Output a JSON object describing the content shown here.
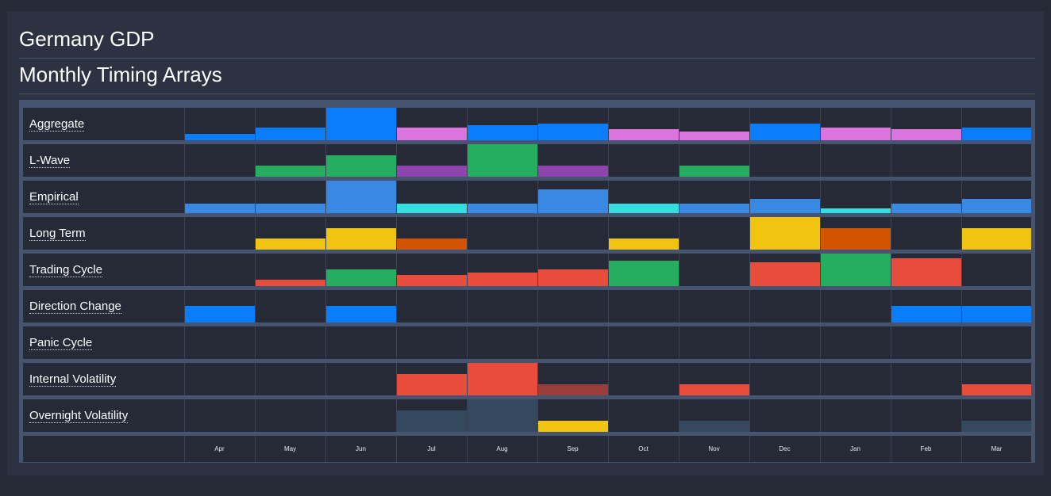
{
  "header": {
    "title": "Germany GDP",
    "subtitle": "Monthly Timing Arrays"
  },
  "months": [
    "Apr",
    "May",
    "Jun",
    "Jul",
    "Aug",
    "Sep",
    "Oct",
    "Nov",
    "Dec",
    "Jan",
    "Feb",
    "Mar"
  ],
  "colors": {
    "blue": "#0a7dfd",
    "pink": "#dc74e0",
    "green": "#26ad60",
    "purple": "#8e44ad",
    "lightblue": "#3989e3",
    "cyan": "#33dde0",
    "yellow": "#f1c40f",
    "orange": "#d35400",
    "red": "#e74c3c",
    "darkred": "#993d3d",
    "slate": "#34495e"
  },
  "rows": [
    {
      "label": "Aggregate",
      "cells": [
        {
          "level": 0.2,
          "color": "blue"
        },
        {
          "level": 0.4,
          "color": "blue"
        },
        {
          "level": 1.0,
          "color": "blue"
        },
        {
          "level": 0.4,
          "color": "pink"
        },
        {
          "level": 0.47,
          "color": "blue"
        },
        {
          "level": 0.5,
          "color": "blue"
        },
        {
          "level": 0.33,
          "color": "pink"
        },
        {
          "level": 0.27,
          "color": "pink"
        },
        {
          "level": 0.5,
          "color": "blue"
        },
        {
          "level": 0.4,
          "color": "pink"
        },
        {
          "level": 0.33,
          "color": "pink"
        },
        {
          "level": 0.4,
          "color": "blue"
        }
      ]
    },
    {
      "label": "L-Wave",
      "cells": [
        {
          "level": 0,
          "color": ""
        },
        {
          "level": 0.33,
          "color": "green"
        },
        {
          "level": 0.67,
          "color": "green"
        },
        {
          "level": 0.33,
          "color": "purple"
        },
        {
          "level": 1.0,
          "color": "green"
        },
        {
          "level": 0.33,
          "color": "purple"
        },
        {
          "level": 0,
          "color": ""
        },
        {
          "level": 0.33,
          "color": "green"
        },
        {
          "level": 0,
          "color": ""
        },
        {
          "level": 0,
          "color": ""
        },
        {
          "level": 0,
          "color": ""
        },
        {
          "level": 0,
          "color": ""
        }
      ]
    },
    {
      "label": "Empirical",
      "cells": [
        {
          "level": 0.3,
          "color": "lightblue"
        },
        {
          "level": 0.3,
          "color": "lightblue"
        },
        {
          "level": 1.0,
          "color": "lightblue"
        },
        {
          "level": 0.3,
          "color": "cyan"
        },
        {
          "level": 0.3,
          "color": "lightblue"
        },
        {
          "level": 0.72,
          "color": "lightblue"
        },
        {
          "level": 0.3,
          "color": "cyan"
        },
        {
          "level": 0.3,
          "color": "lightblue"
        },
        {
          "level": 0.45,
          "color": "lightblue"
        },
        {
          "level": 0.15,
          "color": "cyan"
        },
        {
          "level": 0.3,
          "color": "lightblue"
        },
        {
          "level": 0.45,
          "color": "lightblue"
        }
      ]
    },
    {
      "label": "Long Term",
      "cells": [
        {
          "level": 0,
          "color": ""
        },
        {
          "level": 0.35,
          "color": "yellow"
        },
        {
          "level": 0.65,
          "color": "yellow"
        },
        {
          "level": 0.35,
          "color": "orange"
        },
        {
          "level": 0,
          "color": ""
        },
        {
          "level": 0,
          "color": ""
        },
        {
          "level": 0.35,
          "color": "yellow"
        },
        {
          "level": 0,
          "color": ""
        },
        {
          "level": 1.0,
          "color": "yellow"
        },
        {
          "level": 0.65,
          "color": "orange"
        },
        {
          "level": 0,
          "color": ""
        },
        {
          "level": 0.65,
          "color": "yellow"
        }
      ]
    },
    {
      "label": "Trading Cycle",
      "cells": [
        {
          "level": 0,
          "color": ""
        },
        {
          "level": 0.2,
          "color": "red"
        },
        {
          "level": 0.5,
          "color": "green"
        },
        {
          "level": 0.35,
          "color": "red"
        },
        {
          "level": 0.42,
          "color": "red"
        },
        {
          "level": 0.5,
          "color": "red"
        },
        {
          "level": 0.77,
          "color": "green"
        },
        {
          "level": 0,
          "color": ""
        },
        {
          "level": 0.72,
          "color": "red"
        },
        {
          "level": 1.0,
          "color": "green"
        },
        {
          "level": 0.85,
          "color": "red"
        },
        {
          "level": 0,
          "color": ""
        }
      ]
    },
    {
      "label": "Direction Change",
      "cells": [
        {
          "level": 0.5,
          "color": "blue"
        },
        {
          "level": 0,
          "color": ""
        },
        {
          "level": 0.5,
          "color": "blue"
        },
        {
          "level": 0,
          "color": ""
        },
        {
          "level": 0,
          "color": ""
        },
        {
          "level": 0,
          "color": ""
        },
        {
          "level": 0,
          "color": ""
        },
        {
          "level": 0,
          "color": ""
        },
        {
          "level": 0,
          "color": ""
        },
        {
          "level": 0,
          "color": ""
        },
        {
          "level": 0.5,
          "color": "blue"
        },
        {
          "level": 0.5,
          "color": "blue"
        }
      ]
    },
    {
      "label": "Panic Cycle",
      "cells": [
        {
          "level": 0,
          "color": ""
        },
        {
          "level": 0,
          "color": ""
        },
        {
          "level": 0,
          "color": ""
        },
        {
          "level": 0,
          "color": ""
        },
        {
          "level": 0,
          "color": ""
        },
        {
          "level": 0,
          "color": ""
        },
        {
          "level": 0,
          "color": ""
        },
        {
          "level": 0,
          "color": ""
        },
        {
          "level": 0,
          "color": ""
        },
        {
          "level": 0,
          "color": ""
        },
        {
          "level": 0,
          "color": ""
        },
        {
          "level": 0,
          "color": ""
        }
      ]
    },
    {
      "label": "Internal Volatility",
      "cells": [
        {
          "level": 0,
          "color": ""
        },
        {
          "level": 0,
          "color": ""
        },
        {
          "level": 0,
          "color": ""
        },
        {
          "level": 0.67,
          "color": "red"
        },
        {
          "level": 1.0,
          "color": "red"
        },
        {
          "level": 0.33,
          "color": "darkred"
        },
        {
          "level": 0,
          "color": ""
        },
        {
          "level": 0.33,
          "color": "red"
        },
        {
          "level": 0,
          "color": ""
        },
        {
          "level": 0,
          "color": ""
        },
        {
          "level": 0,
          "color": ""
        },
        {
          "level": 0.33,
          "color": "red"
        }
      ]
    },
    {
      "label": "Overnight Volatility",
      "cells": [
        {
          "level": 0,
          "color": ""
        },
        {
          "level": 0,
          "color": ""
        },
        {
          "level": 0,
          "color": ""
        },
        {
          "level": 0.67,
          "color": "slate"
        },
        {
          "level": 1.0,
          "color": "slate"
        },
        {
          "level": 0.33,
          "color": "yellow"
        },
        {
          "level": 0,
          "color": ""
        },
        {
          "level": 0.33,
          "color": "slate"
        },
        {
          "level": 0,
          "color": ""
        },
        {
          "level": 0,
          "color": ""
        },
        {
          "level": 0,
          "color": ""
        },
        {
          "level": 0.33,
          "color": "slate"
        }
      ]
    }
  ]
}
